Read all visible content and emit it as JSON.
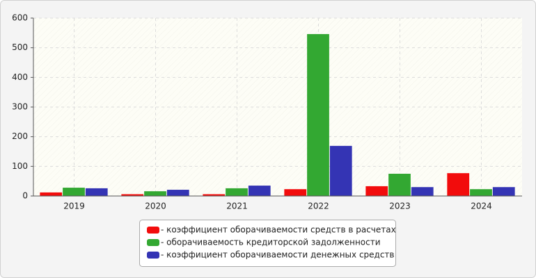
{
  "chart_data": {
    "type": "bar",
    "categories": [
      "2019",
      "2020",
      "2021",
      "2022",
      "2023",
      "2024"
    ],
    "series": [
      {
        "name": "- коэффициент оборачиваемости средств в расчетах",
        "color": "#f20c0c",
        "values": [
          12,
          6,
          6,
          23,
          33,
          77
        ]
      },
      {
        "name": "- оборачиваемость кредиторской задолженности",
        "color": "#33a832",
        "values": [
          28,
          16,
          26,
          546,
          75,
          23
        ]
      },
      {
        "name": "- коэффициент оборачиваемости денежных средств",
        "color": "#3434b4",
        "values": [
          26,
          21,
          35,
          169,
          30,
          30
        ]
      }
    ],
    "ylim": [
      0,
      600
    ],
    "yticks": [
      0,
      100,
      200,
      300,
      400,
      500,
      600
    ],
    "grid": true,
    "legend": "bottom"
  }
}
